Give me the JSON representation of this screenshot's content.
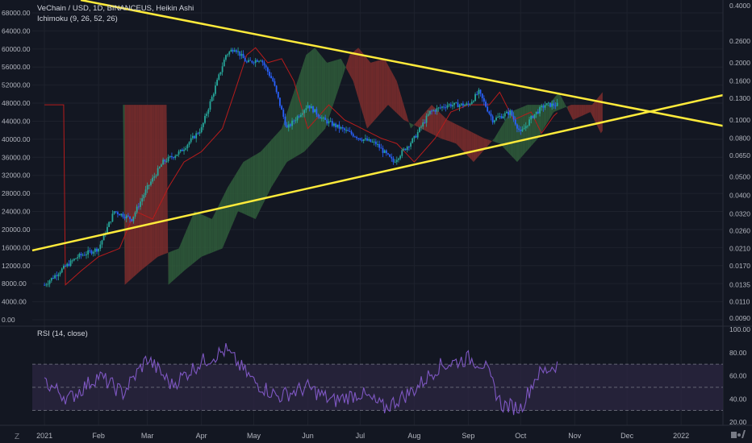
{
  "header": {
    "title_line": "VeChain / USD, 1D, BINANCEUS, Heikin Ashi",
    "indicator_line": "Ichimoku (9, 26, 52, 26)"
  },
  "rsi_panel": {
    "label": "RSI (14, close)"
  },
  "footer": {
    "left_icon": "Z",
    "right_icon": "tradingview-logo-icon"
  },
  "colors": {
    "background": "#131722",
    "grid": "#1e222d",
    "candle_up": "#26a69a",
    "candle_down": "#2962ff",
    "trendline": "#ffeb3b",
    "cloud_bull": "#2f5a3a",
    "cloud_bear": "#7a2c2c",
    "base_line": "#b71c1c",
    "rsi_line": "#7e57c2",
    "rsi_band": "#2a2540"
  },
  "chart_data": [
    {
      "type": "line",
      "title": "VeChain / USD, 1D, BINANCEUS, Heikin Ashi",
      "subtitle": "Ichimoku (9, 26, 52, 26)",
      "x_tick_labels": [
        "2021",
        "Feb",
        "Mar",
        "Apr",
        "May",
        "Jun",
        "Jul",
        "Aug",
        "Sep",
        "Oct",
        "Nov",
        "Dec",
        "2022"
      ],
      "left_axis_labels": [
        "68000.00",
        "64000.00",
        "60000.00",
        "56000.00",
        "52000.00",
        "48000.00",
        "44000.00",
        "40000.00",
        "36000.00",
        "32000.00",
        "28000.00",
        "24000.00",
        "20000.00",
        "16000.00",
        "12000.00",
        "8000.00",
        "4000.00",
        "0.00"
      ],
      "right_axis_labels": [
        "0.4000",
        "0.2600",
        "0.2000",
        "0.1600",
        "0.1300",
        "0.1000",
        "0.0800",
        "0.0650",
        "0.0500",
        "0.0400",
        "0.0320",
        "0.0260",
        "0.0210",
        "0.0170",
        "0.0135",
        "0.0110",
        "0.0090"
      ],
      "right_axis_scale": "log",
      "series": [
        {
          "role": "price",
          "x": [
            "2021-01-01",
            "2021-01-10",
            "2021-01-20",
            "2021-02-01",
            "2021-02-10",
            "2021-02-20",
            "2021-03-01",
            "2021-03-10",
            "2021-03-20",
            "2021-04-01",
            "2021-04-08",
            "2021-04-15",
            "2021-04-20",
            "2021-04-27",
            "2021-05-05",
            "2021-05-12",
            "2021-05-20",
            "2021-06-01",
            "2021-06-10",
            "2021-06-20",
            "2021-07-01",
            "2021-07-10",
            "2021-07-20",
            "2021-08-01",
            "2021-08-10",
            "2021-08-20",
            "2021-09-01",
            "2021-09-07",
            "2021-09-15",
            "2021-09-25",
            "2021-10-01",
            "2021-10-08",
            "2021-10-15",
            "2021-10-22"
          ],
          "values": [
            0.0135,
            0.016,
            0.019,
            0.021,
            0.033,
            0.03,
            0.044,
            0.06,
            0.068,
            0.09,
            0.14,
            0.22,
            0.24,
            0.2,
            0.21,
            0.16,
            0.09,
            0.12,
            0.1,
            0.09,
            0.08,
            0.075,
            0.06,
            0.08,
            0.11,
            0.12,
            0.12,
            0.14,
            0.1,
            0.11,
            0.085,
            0.105,
            0.12,
            0.12
          ]
        },
        {
          "role": "rsi",
          "x": [
            "2021-01-01",
            "2021-01-15",
            "2021-02-01",
            "2021-02-15",
            "2021-03-01",
            "2021-03-15",
            "2021-04-01",
            "2021-04-15",
            "2021-05-01",
            "2021-05-15",
            "2021-06-01",
            "2021-06-15",
            "2021-07-01",
            "2021-07-15",
            "2021-08-01",
            "2021-08-15",
            "2021-09-01",
            "2021-09-10",
            "2021-09-20",
            "2021-10-01",
            "2021-10-10",
            "2021-10-22"
          ],
          "values": [
            55,
            40,
            60,
            45,
            75,
            52,
            72,
            82,
            55,
            42,
            50,
            38,
            45,
            32,
            48,
            68,
            75,
            70,
            35,
            32,
            60,
            70
          ],
          "ylim": [
            20,
            100
          ],
          "levels": [
            30,
            50,
            70
          ]
        }
      ],
      "ylim": [
        0.0085,
        0.42
      ],
      "yscale": "log",
      "grid": true
    }
  ]
}
